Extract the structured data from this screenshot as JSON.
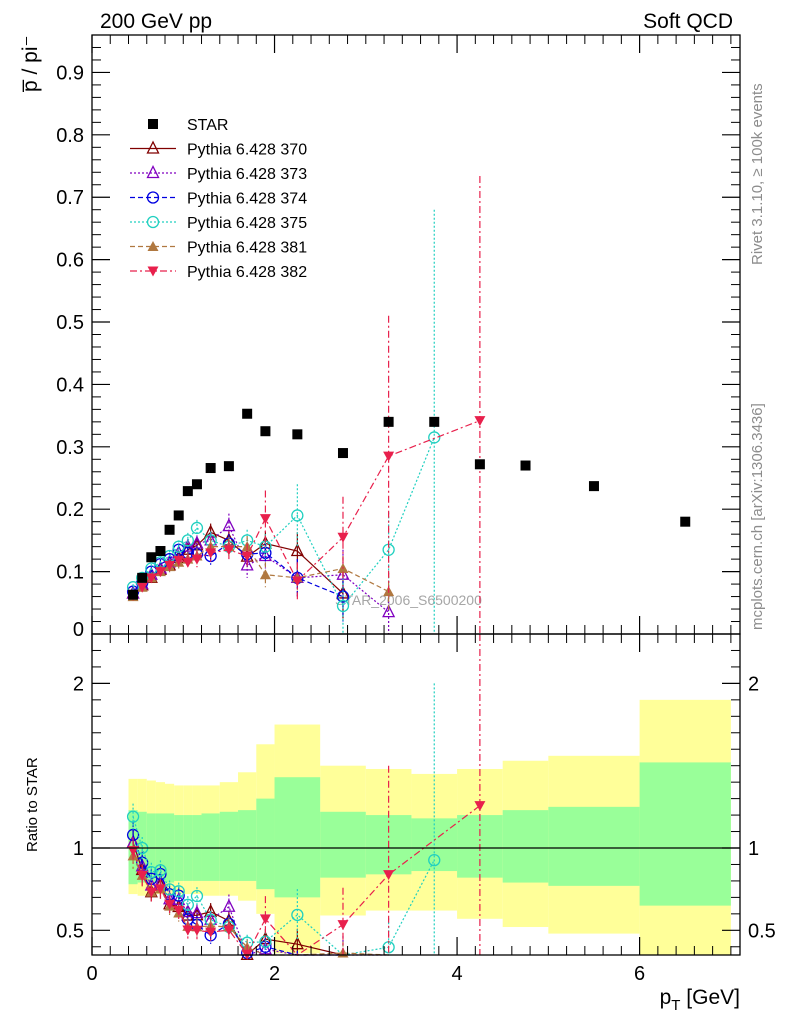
{
  "header": {
    "left": "200 GeV pp",
    "right": "Soft QCD"
  },
  "side_labels": {
    "rivet": "Rivet 3.1.10, ≥ 100k events",
    "mcplots": "mcplots.cern.ch [arXiv:1306.3436]"
  },
  "watermark": "STAR_2006_S6500200",
  "chart_data": [
    {
      "type": "scatter",
      "panel": "main",
      "ylabel": "p̅ / pi⁻",
      "xlim": [
        0,
        7.1
      ],
      "ylim": [
        0,
        0.96
      ],
      "y_ticks": [
        0.1,
        0.2,
        0.3,
        0.4,
        0.5,
        0.6,
        0.7,
        0.8,
        0.9
      ],
      "y_tick_labels": [
        "0.1",
        "0.2",
        "0.3",
        "0.4",
        "0.5",
        "0.6",
        "0.7",
        "0.8",
        "0.9"
      ],
      "y_zero_label": "0",
      "legend_position": "top-left",
      "series": [
        {
          "name": "STAR",
          "color": "#000000",
          "marker": "square",
          "x": [
            0.45,
            0.55,
            0.65,
            0.75,
            0.85,
            0.95,
            1.05,
            1.15,
            1.3,
            1.5,
            1.7,
            1.9,
            2.25,
            2.75,
            3.25,
            3.75,
            4.25,
            4.75,
            5.5,
            6.5
          ],
          "y": [
            0.063,
            0.09,
            0.123,
            0.133,
            0.167,
            0.19,
            0.229,
            0.24,
            0.266,
            0.269,
            0.353,
            0.325,
            0.32,
            0.29,
            0.34,
            0.34,
            0.272,
            0.27,
            0.237,
            0.18
          ]
        },
        {
          "name": "Pythia 6.428 370",
          "color": "#800000",
          "marker": "triangle-open",
          "line": "solid",
          "x": [
            0.45,
            0.55,
            0.65,
            0.75,
            0.85,
            0.95,
            1.05,
            1.15,
            1.3,
            1.5,
            1.7,
            1.9,
            2.25,
            2.75
          ],
          "y": [
            0.065,
            0.078,
            0.09,
            0.103,
            0.11,
            0.122,
            0.135,
            0.142,
            0.163,
            0.15,
            0.124,
            0.145,
            0.133,
            0.065
          ],
          "err": [
            0.005,
            0.006,
            0.007,
            0.008,
            0.009,
            0.01,
            0.012,
            0.013,
            0.014,
            0.015,
            0.017,
            0.02,
            0.03,
            0.04
          ]
        },
        {
          "name": "Pythia 6.428 373",
          "color": "#8000c0",
          "marker": "triangle-open",
          "line": "dotted",
          "x": [
            0.45,
            0.55,
            0.65,
            0.75,
            0.85,
            0.95,
            1.05,
            1.15,
            1.3,
            1.5,
            1.7,
            1.9,
            2.25,
            2.75,
            3.25
          ],
          "y": [
            0.065,
            0.08,
            0.095,
            0.105,
            0.115,
            0.13,
            0.14,
            0.145,
            0.15,
            0.173,
            0.11,
            0.125,
            0.09,
            0.095,
            0.035
          ],
          "err": [
            0.005,
            0.006,
            0.007,
            0.008,
            0.009,
            0.01,
            0.012,
            0.013,
            0.014,
            0.02,
            0.02,
            0.02,
            0.03,
            0.04,
            0.05
          ]
        },
        {
          "name": "Pythia 6.428 374",
          "color": "#0000e0",
          "marker": "circle-open",
          "line": "dashed",
          "x": [
            0.45,
            0.55,
            0.65,
            0.75,
            0.85,
            0.95,
            1.05,
            1.15,
            1.3,
            1.5,
            1.7,
            1.9,
            2.25,
            2.75
          ],
          "y": [
            0.068,
            0.082,
            0.1,
            0.112,
            0.12,
            0.135,
            0.13,
            0.128,
            0.125,
            0.145,
            0.128,
            0.13,
            0.09,
            0.06
          ],
          "err": [
            0.005,
            0.006,
            0.007,
            0.008,
            0.009,
            0.01,
            0.012,
            0.013,
            0.014,
            0.015,
            0.017,
            0.02,
            0.03,
            0.04
          ]
        },
        {
          "name": "Pythia 6.428 375",
          "color": "#20d0c0",
          "marker": "circle-open",
          "line": "dotted",
          "x": [
            0.45,
            0.55,
            0.65,
            0.75,
            0.85,
            0.95,
            1.05,
            1.15,
            1.3,
            1.5,
            1.7,
            1.9,
            2.25,
            2.75,
            3.25,
            3.75
          ],
          "y": [
            0.075,
            0.09,
            0.105,
            0.115,
            0.125,
            0.14,
            0.15,
            0.17,
            0.15,
            0.14,
            0.15,
            0.14,
            0.19,
            0.045,
            0.135,
            0.315
          ],
          "err": [
            0.005,
            0.006,
            0.007,
            0.008,
            0.009,
            0.01,
            0.012,
            0.013,
            0.014,
            0.015,
            0.017,
            0.02,
            0.05,
            0.05,
            0.06,
            0.365
          ]
        },
        {
          "name": "Pythia 6.428 381",
          "color": "#b07840",
          "marker": "triangle-filled",
          "line": "dashed",
          "x": [
            0.45,
            0.55,
            0.65,
            0.75,
            0.85,
            0.95,
            1.05,
            1.15,
            1.3,
            1.5,
            1.7,
            1.9,
            2.25,
            2.75,
            3.25
          ],
          "y": [
            0.06,
            0.075,
            0.09,
            0.1,
            0.108,
            0.115,
            0.12,
            0.125,
            0.14,
            0.14,
            0.14,
            0.095,
            0.09,
            0.105,
            0.068
          ],
          "err": [
            0.005,
            0.006,
            0.007,
            0.008,
            0.009,
            0.01,
            0.012,
            0.013,
            0.014,
            0.015,
            0.017,
            0.02,
            0.02,
            0.02,
            0.03
          ]
        },
        {
          "name": "Pythia 6.428 382",
          "color": "#e8204c",
          "marker": "triangle-down-filled",
          "line": "dashdot",
          "x": [
            0.45,
            0.55,
            0.65,
            0.75,
            0.85,
            0.95,
            1.05,
            1.15,
            1.3,
            1.5,
            1.7,
            1.9,
            2.25,
            2.75,
            3.25,
            4.25
          ],
          "y": [
            0.062,
            0.075,
            0.09,
            0.1,
            0.11,
            0.118,
            0.115,
            0.12,
            0.13,
            0.135,
            0.125,
            0.185,
            0.085,
            0.155,
            0.285,
            0.342
          ],
          "err": [
            0.005,
            0.006,
            0.007,
            0.008,
            0.009,
            0.01,
            0.012,
            0.013,
            0.014,
            0.015,
            0.02,
            0.045,
            0.03,
            0.065,
            0.225,
            0.392
          ]
        }
      ]
    },
    {
      "type": "area",
      "panel": "ratio",
      "ylabel": "Ratio to STAR",
      "xlabel": "p_T [GeV]",
      "xlim": [
        0,
        7.1
      ],
      "ylim": [
        0.35,
        2.3
      ],
      "x_ticks": [
        0,
        2,
        4,
        6
      ],
      "x_tick_labels": [
        "0",
        "2",
        "4",
        "6"
      ],
      "y_ticks": [
        0.5,
        1,
        2
      ],
      "y_tick_labels": [
        "0.5",
        "1",
        "2"
      ],
      "reference_line": 1,
      "bins": {
        "edges": [
          0.4,
          0.5,
          0.6,
          0.7,
          0.8,
          0.9,
          1.0,
          1.1,
          1.2,
          1.4,
          1.6,
          1.8,
          2.0,
          2.5,
          3.0,
          3.5,
          4.0,
          4.5,
          5.0,
          6.0,
          7.0
        ],
        "inner": [
          [
            0.78,
            1.23
          ],
          [
            0.79,
            1.22
          ],
          [
            0.79,
            1.21
          ],
          [
            0.79,
            1.21
          ],
          [
            0.79,
            1.21
          ],
          [
            0.8,
            1.2
          ],
          [
            0.8,
            1.2
          ],
          [
            0.8,
            1.2
          ],
          [
            0.8,
            1.21
          ],
          [
            0.8,
            1.22
          ],
          [
            0.8,
            1.23
          ],
          [
            0.75,
            1.3
          ],
          [
            0.7,
            1.43
          ],
          [
            0.82,
            1.22
          ],
          [
            0.84,
            1.2
          ],
          [
            0.86,
            1.18
          ],
          [
            0.82,
            1.2
          ],
          [
            0.79,
            1.23
          ],
          [
            0.77,
            1.25
          ],
          [
            0.65,
            1.52
          ]
        ],
        "outer": [
          [
            0.72,
            1.42
          ],
          [
            0.71,
            1.42
          ],
          [
            0.72,
            1.41
          ],
          [
            0.72,
            1.4
          ],
          [
            0.72,
            1.39
          ],
          [
            0.72,
            1.38
          ],
          [
            0.72,
            1.38
          ],
          [
            0.72,
            1.38
          ],
          [
            0.71,
            1.38
          ],
          [
            0.71,
            1.4
          ],
          [
            0.68,
            1.46
          ],
          [
            0.6,
            1.63
          ],
          [
            0.36,
            1.75
          ],
          [
            0.59,
            1.5
          ],
          [
            0.62,
            1.48
          ],
          [
            0.62,
            1.45
          ],
          [
            0.57,
            1.48
          ],
          [
            0.52,
            1.53
          ],
          [
            0.48,
            1.56
          ],
          [
            0.35,
            1.9
          ]
        ]
      }
    }
  ]
}
